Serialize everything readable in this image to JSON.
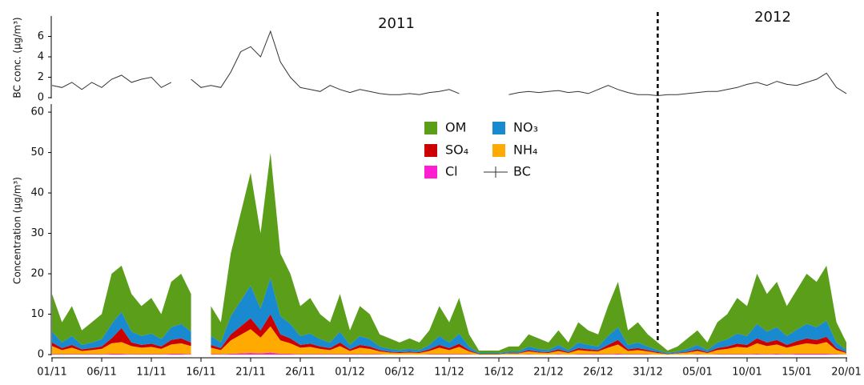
{
  "chart_data": [
    {
      "type": "line",
      "y_label": "BC conc. (μg/m³)",
      "annotations": [
        "2011",
        "2012"
      ],
      "year_boundary": 61,
      "xlim": [
        0,
        80
      ],
      "ylim": [
        0,
        8
      ],
      "yticks": [
        0,
        2,
        4,
        6
      ],
      "x": [
        0,
        1,
        2,
        3,
        4,
        5,
        6,
        7,
        8,
        9,
        10,
        11,
        12,
        13,
        14,
        15,
        16,
        17,
        18,
        19,
        20,
        21,
        22,
        23,
        24,
        25,
        26,
        27,
        28,
        29,
        30,
        31,
        32,
        33,
        34,
        35,
        36,
        37,
        38,
        39,
        40,
        41,
        42,
        43,
        44,
        45,
        46,
        47,
        48,
        49,
        50,
        51,
        52,
        53,
        54,
        55,
        56,
        57,
        58,
        59,
        60,
        61,
        62,
        63,
        64,
        65,
        66,
        67,
        68,
        69,
        70,
        71,
        72,
        73,
        74,
        75,
        76,
        77,
        78,
        79,
        80
      ],
      "series": [
        {
          "name": "BC",
          "color": "#333333",
          "values": [
            1.2,
            1.0,
            1.5,
            0.8,
            1.5,
            1.0,
            1.8,
            2.2,
            1.5,
            1.8,
            2.0,
            1.0,
            1.5,
            null,
            1.8,
            1.0,
            1.2,
            1.0,
            2.5,
            4.5,
            5.0,
            4.0,
            6.5,
            3.5,
            2.0,
            1.0,
            0.8,
            0.6,
            1.2,
            0.8,
            0.5,
            0.8,
            0.6,
            0.4,
            0.3,
            0.3,
            0.4,
            0.3,
            0.5,
            0.6,
            0.8,
            0.4,
            null,
            null,
            null,
            null,
            0.3,
            0.5,
            0.6,
            0.5,
            0.6,
            0.7,
            0.5,
            0.6,
            0.4,
            0.8,
            1.2,
            0.8,
            0.5,
            0.3,
            0.3,
            0.2,
            0.3,
            0.3,
            0.4,
            0.5,
            0.6,
            0.6,
            0.8,
            1.0,
            1.3,
            1.5,
            1.2,
            1.6,
            1.3,
            1.2,
            1.5,
            1.8,
            2.4,
            1.0,
            0.4
          ]
        }
      ]
    },
    {
      "type": "stacked-area",
      "y_label": "Concentration (μg/m³)",
      "xlim": [
        0,
        80
      ],
      "ylim": [
        0,
        62
      ],
      "yticks": [
        0,
        10,
        20,
        30,
        40,
        50,
        60
      ],
      "xticks": [
        {
          "value": 0,
          "label": "01/11"
        },
        {
          "value": 5,
          "label": "06/11"
        },
        {
          "value": 10,
          "label": "11/11"
        },
        {
          "value": 15,
          "label": "16/11"
        },
        {
          "value": 20,
          "label": "21/11"
        },
        {
          "value": 25,
          "label": "26/11"
        },
        {
          "value": 30,
          "label": "01/12"
        },
        {
          "value": 35,
          "label": "06/12"
        },
        {
          "value": 40,
          "label": "11/12"
        },
        {
          "value": 45,
          "label": "16/12"
        },
        {
          "value": 50,
          "label": "21/12"
        },
        {
          "value": 55,
          "label": "26/12"
        },
        {
          "value": 60,
          "label": "31/12"
        },
        {
          "value": 65,
          "label": "05/01"
        },
        {
          "value": 70,
          "label": "10/01"
        },
        {
          "value": 75,
          "label": "15/01"
        },
        {
          "value": 80,
          "label": "20/01"
        }
      ],
      "x": [
        0,
        1,
        2,
        3,
        4,
        5,
        6,
        7,
        8,
        9,
        10,
        11,
        12,
        13,
        14,
        15,
        16,
        17,
        18,
        19,
        20,
        21,
        22,
        23,
        24,
        25,
        26,
        27,
        28,
        29,
        30,
        31,
        32,
        33,
        34,
        35,
        36,
        37,
        38,
        39,
        40,
        41,
        42,
        43,
        44,
        45,
        46,
        47,
        48,
        49,
        50,
        51,
        52,
        53,
        54,
        55,
        56,
        57,
        58,
        59,
        60,
        61,
        62,
        63,
        64,
        65,
        66,
        67,
        68,
        69,
        70,
        71,
        72,
        73,
        74,
        75,
        76,
        77,
        78,
        79,
        80
      ],
      "series": [
        {
          "name": "Cl",
          "color": "#ff1ecf",
          "values": [
            0.1,
            0.1,
            0.1,
            0.1,
            0.1,
            0.1,
            0.2,
            0.2,
            0.1,
            0.1,
            0.1,
            0.1,
            0.2,
            0.2,
            0.1,
            null,
            0.1,
            0.1,
            0.2,
            0.3,
            0.4,
            0.3,
            0.5,
            0.2,
            0.2,
            0.1,
            0.1,
            0.1,
            0.1,
            0.1,
            0.1,
            0.1,
            0.1,
            0.1,
            0,
            0,
            0,
            0,
            0.1,
            0.1,
            0.1,
            0.1,
            0.1,
            0,
            0,
            0,
            0,
            0,
            0.1,
            0,
            0,
            0.1,
            0,
            0.1,
            0.1,
            0.1,
            0.1,
            0.2,
            0.1,
            0.1,
            0.1,
            0,
            0,
            0,
            0,
            0.1,
            0,
            0.1,
            0.1,
            0.1,
            0.1,
            0.2,
            0.1,
            0.2,
            0.1,
            0.2,
            0.2,
            0.2,
            0.2,
            0.1,
            0
          ]
        },
        {
          "name": "NH₄",
          "color": "#ffaa00",
          "values": [
            2.0,
            1.0,
            1.6,
            0.8,
            1.0,
            1.3,
            2.6,
            2.9,
            2.0,
            1.6,
            1.8,
            1.3,
            2.3,
            2.6,
            2.0,
            null,
            1.6,
            1.0,
            3.3,
            4.6,
            5.9,
            3.9,
            6.5,
            3.3,
            2.6,
            1.6,
            1.8,
            1.3,
            1.0,
            2.0,
            0.8,
            1.6,
            1.3,
            0.7,
            0.5,
            0.4,
            0.5,
            0.4,
            0.8,
            1.6,
            1.0,
            1.8,
            0.7,
            0.1,
            0.1,
            0.1,
            0.3,
            0.3,
            0.7,
            0.5,
            0.4,
            0.8,
            0.4,
            1.0,
            0.8,
            0.7,
            1.6,
            2.3,
            0.8,
            1.0,
            0.7,
            0.4,
            0.1,
            0.3,
            0.5,
            0.8,
            0.4,
            1.0,
            1.3,
            1.8,
            1.6,
            2.6,
            2.0,
            2.3,
            1.6,
            2.1,
            2.6,
            2.3,
            2.9,
            1.0,
            0.4
          ]
        },
        {
          "name": "SO₄",
          "color": "#cc0000",
          "values": [
            0.9,
            0.5,
            0.7,
            0.4,
            0.5,
            0.6,
            1.2,
            3.5,
            0.9,
            0.7,
            0.8,
            0.6,
            1.1,
            1.2,
            0.9,
            null,
            0.7,
            0.5,
            1.5,
            2.1,
            2.7,
            1.8,
            3.0,
            1.5,
            1.2,
            0.7,
            0.8,
            0.6,
            0.5,
            0.9,
            0.4,
            0.7,
            0.6,
            0.3,
            0.2,
            0.2,
            0.2,
            0.2,
            0.4,
            0.7,
            0.5,
            0.8,
            0.3,
            0.1,
            0.1,
            0.1,
            0.1,
            0.1,
            0.3,
            0.2,
            0.2,
            0.4,
            0.2,
            0.5,
            0.4,
            0.3,
            0.7,
            1.1,
            0.4,
            0.5,
            0.3,
            0.2,
            0.1,
            0.1,
            0.2,
            0.4,
            0.2,
            0.5,
            0.6,
            0.8,
            0.7,
            1.2,
            0.9,
            1.1,
            0.7,
            1.0,
            1.2,
            1.1,
            1.3,
            0.5,
            0.2
          ]
        },
        {
          "name": "NO₃",
          "color": "#1a8ad0",
          "values": [
            2.7,
            1.4,
            2.2,
            1.1,
            1.4,
            1.8,
            3.6,
            4.0,
            2.7,
            2.2,
            2.5,
            1.8,
            3.2,
            3.6,
            2.7,
            null,
            2.2,
            1.4,
            4.5,
            6.3,
            8.1,
            5.4,
            9.0,
            4.5,
            3.6,
            2.2,
            2.5,
            1.8,
            1.4,
            2.7,
            1.1,
            2.2,
            1.8,
            0.9,
            0.7,
            0.5,
            0.7,
            0.5,
            1.1,
            2.2,
            1.4,
            2.5,
            0.9,
            0.2,
            0.2,
            0.2,
            0.4,
            0.4,
            0.9,
            0.7,
            0.5,
            1.1,
            0.5,
            1.4,
            1.1,
            0.9,
            2.2,
            3.2,
            1.1,
            1.4,
            0.9,
            0.5,
            0.2,
            0.4,
            0.7,
            1.1,
            0.5,
            1.4,
            1.8,
            2.5,
            2.2,
            3.6,
            2.7,
            3.2,
            2.2,
            2.9,
            3.6,
            3.2,
            4.0,
            1.4,
            0.5
          ]
        },
        {
          "name": "OM",
          "color": "#5a9e1a",
          "values": [
            9.3,
            5.0,
            7.4,
            3.6,
            5.0,
            6.2,
            12.4,
            11.4,
            9.3,
            7.4,
            8.8,
            6.2,
            11.2,
            12.4,
            9.3,
            null,
            7.4,
            5.0,
            15.5,
            21.7,
            27.9,
            18.6,
            31.0,
            15.5,
            12.4,
            7.4,
            8.8,
            6.2,
            5.0,
            9.3,
            3.6,
            7.4,
            6.2,
            3.0,
            2.6,
            1.9,
            2.6,
            1.9,
            3.6,
            7.4,
            5.0,
            8.8,
            3.0,
            0.6,
            0.6,
            0.6,
            1.2,
            1.2,
            3.0,
            2.6,
            1.9,
            3.6,
            1.9,
            5.0,
            3.6,
            3.0,
            7.4,
            11.2,
            3.6,
            5.0,
            3.0,
            1.9,
            0.6,
            1.2,
            2.6,
            3.6,
            1.9,
            5.0,
            6.2,
            8.8,
            7.4,
            12.4,
            9.3,
            11.2,
            7.4,
            9.8,
            12.4,
            11.2,
            13.6,
            5.0,
            1.9
          ]
        }
      ]
    }
  ]
}
